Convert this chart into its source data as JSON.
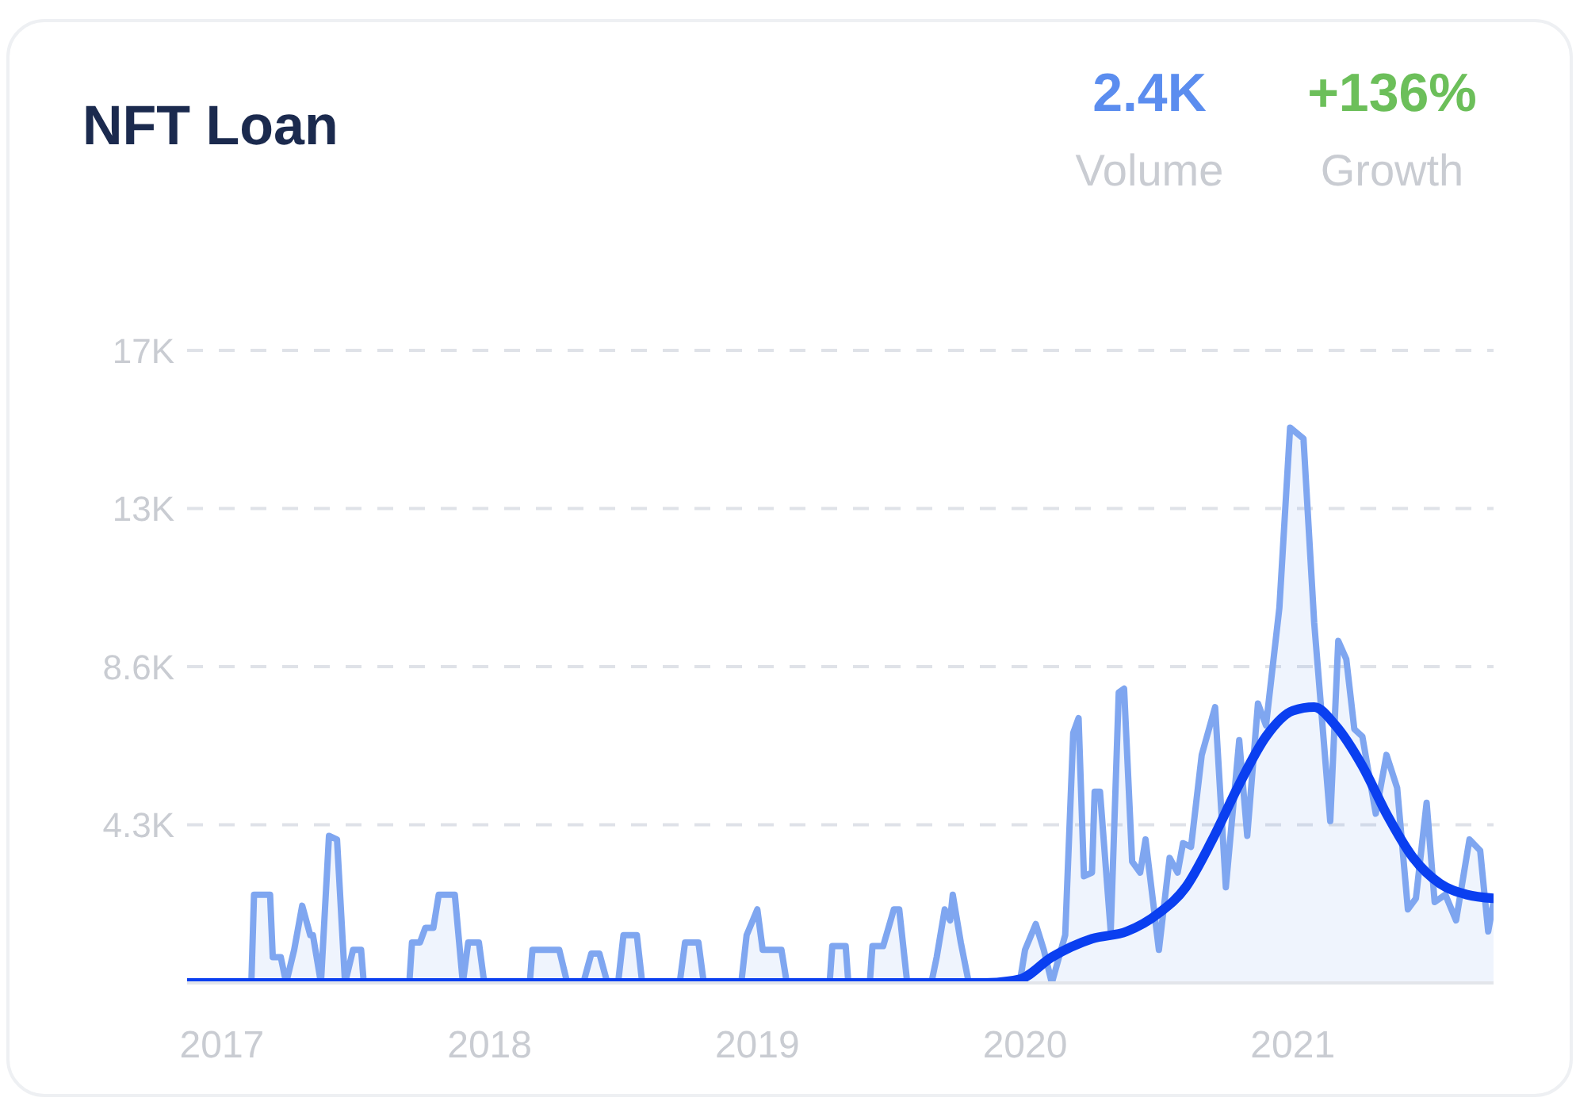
{
  "chart_data": {
    "type": "area",
    "title": "NFT Loan",
    "annotations": [
      "2.4K",
      "Volume",
      "+136%",
      "Growth"
    ],
    "xlim": [
      2016.87,
      2021.75
    ],
    "xticks": [
      2017,
      2018,
      2019,
      2020,
      2021
    ],
    "ylim": [
      0,
      17200
    ],
    "yticks": [
      {
        "value": 4300,
        "label": "4.3K"
      },
      {
        "value": 8600,
        "label": "8.6K"
      },
      {
        "value": 12900,
        "label": "13K"
      },
      {
        "value": 17200,
        "label": "17K"
      }
    ],
    "grid": "y",
    "marker": "none",
    "series": [
      {
        "color": "#7fa6f0",
        "x": [
          2016.87,
          2017.11,
          2017.12,
          2017.18,
          2017.19,
          2017.22,
          2017.24,
          2017.27,
          2017.3,
          2017.33,
          2017.34,
          2017.37,
          2017.4,
          2017.43,
          2017.46,
          2017.49,
          2017.52,
          2017.53,
          2017.7,
          2017.71,
          2017.74,
          2017.76,
          2017.79,
          2017.81,
          2017.87,
          2017.9,
          2017.92,
          2017.96,
          2017.98,
          2018.15,
          2018.16,
          2018.23,
          2018.26,
          2018.29,
          2018.35,
          2018.38,
          2018.41,
          2018.44,
          2018.48,
          2018.5,
          2018.55,
          2018.57,
          2018.71,
          2018.73,
          2018.78,
          2018.8,
          2018.94,
          2018.96,
          2019.0,
          2019.02,
          2019.09,
          2019.11,
          2019.27,
          2019.28,
          2019.33,
          2019.34,
          2019.42,
          2019.43,
          2019.47,
          2019.51,
          2019.53,
          2019.56,
          2019.65,
          2019.67,
          2019.7,
          2019.72,
          2019.73,
          2019.76,
          2019.79,
          2019.98,
          2020.0,
          2020.04,
          2020.07,
          2020.1,
          2020.15,
          2020.18,
          2020.2,
          2020.22,
          2020.25,
          2020.26,
          2020.28,
          2020.32,
          2020.35,
          2020.37,
          2020.4,
          2020.43,
          2020.45,
          2020.5,
          2020.54,
          2020.57,
          2020.59,
          2020.62,
          2020.66,
          2020.71,
          2020.75,
          2020.8,
          2020.83,
          2020.87,
          2020.9,
          2020.95,
          2020.99,
          2021.04,
          2021.08,
          2021.14,
          2021.17,
          2021.2,
          2021.23,
          2021.26,
          2021.31,
          2021.35,
          2021.39,
          2021.43,
          2021.46,
          2021.5,
          2021.53,
          2021.57,
          2021.61,
          2021.66,
          2021.7,
          2021.73,
          2021.75
        ],
        "values": [
          0,
          0,
          2400,
          2400,
          700,
          700,
          0,
          900,
          2100,
          1300,
          1300,
          0,
          4000,
          3900,
          0,
          900,
          900,
          0,
          0,
          1100,
          1100,
          1500,
          1500,
          2400,
          2400,
          0,
          1100,
          1100,
          0,
          0,
          900,
          900,
          900,
          0,
          0,
          800,
          800,
          0,
          0,
          1300,
          1300,
          0,
          0,
          1100,
          1100,
          0,
          0,
          1300,
          2000,
          900,
          900,
          0,
          0,
          1000,
          1000,
          0,
          0,
          1000,
          1000,
          2000,
          2000,
          0,
          0,
          700,
          2000,
          1700,
          2400,
          1100,
          0,
          0,
          900,
          1600,
          900,
          0,
          1300,
          6800,
          7200,
          2900,
          3000,
          5200,
          5200,
          1400,
          7900,
          8000,
          3300,
          3000,
          3900,
          900,
          3400,
          3000,
          3800,
          3700,
          6200,
          7500,
          2600,
          6600,
          4000,
          7600,
          7000,
          10200,
          15100,
          14800,
          9800,
          4400,
          9300,
          8800,
          6900,
          6700,
          4600,
          6200,
          5300,
          2000,
          2300,
          4900,
          2200,
          2400,
          1700,
          3900,
          3600,
          1400,
          2200
        ]
      },
      {
        "type": "line",
        "color": "#0a3ff0",
        "x": [
          2016.87,
          2019.85,
          2019.98,
          2020.1,
          2020.25,
          2020.38,
          2020.5,
          2020.6,
          2020.7,
          2020.8,
          2020.9,
          2021.0,
          2021.08,
          2021.16,
          2021.26,
          2021.35,
          2021.45,
          2021.55,
          2021.65,
          2021.75
        ],
        "values": [
          0,
          0,
          100,
          700,
          1200,
          1400,
          1900,
          2600,
          3900,
          5400,
          6700,
          7400,
          7500,
          7000,
          5900,
          4600,
          3400,
          2700,
          2400,
          2300
        ]
      }
    ]
  }
}
